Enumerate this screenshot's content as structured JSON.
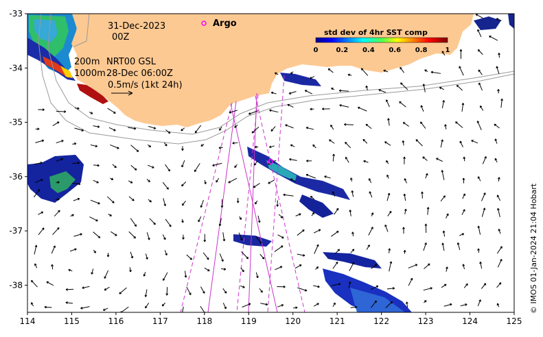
{
  "map": {
    "date_line": "31-Dec-2023",
    "time_line": "00Z",
    "depth_line_1": "200m",
    "depth_line_2": "1000m",
    "product_line_1": "NRT00 GSL",
    "product_line_2": "28-Dec 06:00Z",
    "scale_label": "0.5m/s (1kt 24h)",
    "argo_label": "Argo",
    "credit": "© IMOS 01-Jan-2024 21:04 Hobart",
    "lon_ticks": [
      "114",
      "115",
      "116",
      "117",
      "118",
      "119",
      "120",
      "121",
      "122",
      "123",
      "124",
      "125"
    ],
    "lat_ticks": [
      "-33",
      "-34",
      "-35",
      "-36",
      "-37",
      "-38"
    ],
    "lon_range": [
      114,
      125
    ],
    "lat_range": [
      -38.5,
      -33
    ]
  },
  "colorbar": {
    "title": "std dev of 4hr SST comp",
    "ticks": [
      "0",
      "0.2",
      "0.4",
      "0.6",
      "0.8",
      "1"
    ],
    "range": [
      0,
      1
    ]
  },
  "colors": {
    "land": "#fdc992",
    "argo": "#ff00ff",
    "tracks": "#cc33cc",
    "contours": "#999999"
  }
}
